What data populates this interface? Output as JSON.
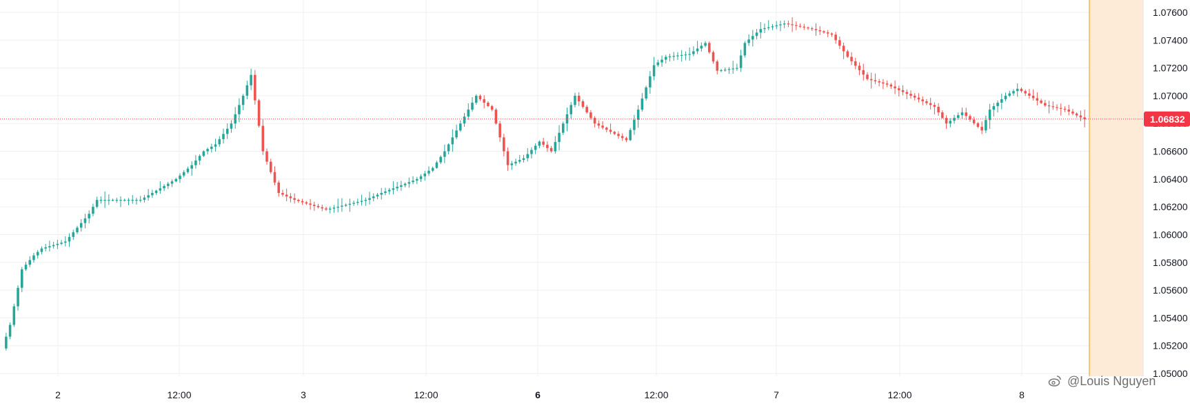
{
  "chart_data": {
    "type": "candlestick",
    "ylim": [
      1.05,
      1.0765
    ],
    "y_ticks": [
      "1.07600",
      "1.07400",
      "1.07200",
      "1.07000",
      "1.06800",
      "1.06600",
      "1.06400",
      "1.06200",
      "1.06000",
      "1.05800",
      "1.05600",
      "1.05400",
      "1.05200",
      "1.05000"
    ],
    "x_ticks": [
      {
        "label": "2",
        "bold": false
      },
      {
        "label": "12:00",
        "bold": false
      },
      {
        "label": "3",
        "bold": false
      },
      {
        "label": "12:00",
        "bold": false
      },
      {
        "label": "6",
        "bold": true
      },
      {
        "label": "12:00",
        "bold": false
      },
      {
        "label": "7",
        "bold": false
      },
      {
        "label": "12:00",
        "bold": false
      },
      {
        "label": "8",
        "bold": false
      }
    ],
    "last_price": 1.06832,
    "last_price_label": "1.06832",
    "colors": {
      "up": "#26a69a",
      "down": "#ef5350",
      "last_price": "#f23645",
      "future_zone": "#fdebd8",
      "future_line": "#f5a623",
      "grid": "#efefef"
    },
    "anchors": [
      [
        0,
        1.0518
      ],
      [
        2,
        1.0535
      ],
      [
        5,
        1.0575
      ],
      [
        8,
        1.0585
      ],
      [
        10,
        1.059
      ],
      [
        16,
        1.0595
      ],
      [
        22,
        1.0615
      ],
      [
        24,
        1.0625
      ],
      [
        28,
        1.0625
      ],
      [
        35,
        1.0625
      ],
      [
        44,
        1.064
      ],
      [
        48,
        1.065
      ],
      [
        51,
        1.066
      ],
      [
        54,
        1.0665
      ],
      [
        58,
        1.068
      ],
      [
        61,
        1.07
      ],
      [
        63,
        1.0715
      ],
      [
        66,
        1.066
      ],
      [
        70,
        1.063
      ],
      [
        74,
        1.0625
      ],
      [
        82,
        1.0618
      ],
      [
        92,
        1.0625
      ],
      [
        96,
        1.063
      ],
      [
        105,
        1.064
      ],
      [
        109,
        1.0648
      ],
      [
        112,
        1.066
      ],
      [
        116,
        1.068
      ],
      [
        120,
        1.07
      ],
      [
        124,
        1.069
      ],
      [
        128,
        1.065
      ],
      [
        132,
        1.0655
      ],
      [
        136,
        1.0667
      ],
      [
        139,
        1.066
      ],
      [
        145,
        1.07
      ],
      [
        150,
        1.068
      ],
      [
        158,
        1.0668
      ],
      [
        161,
        1.069
      ],
      [
        165,
        1.0722
      ],
      [
        168,
        1.0728
      ],
      [
        174,
        1.073
      ],
      [
        178,
        1.0738
      ],
      [
        181,
        1.0718
      ],
      [
        186,
        1.072
      ],
      [
        188,
        1.0738
      ],
      [
        192,
        1.0748
      ],
      [
        198,
        1.0752
      ],
      [
        205,
        1.0748
      ],
      [
        210,
        1.0744
      ],
      [
        214,
        1.0728
      ],
      [
        219,
        1.0712
      ],
      [
        224,
        1.0708
      ],
      [
        230,
        1.07
      ],
      [
        236,
        1.0692
      ],
      [
        239,
        1.068
      ],
      [
        243,
        1.0688
      ],
      [
        248,
        1.0675
      ],
      [
        250,
        1.069
      ],
      [
        254,
        1.07
      ],
      [
        257,
        1.0705
      ],
      [
        260,
        1.07
      ],
      [
        264,
        1.0693
      ],
      [
        269,
        1.069
      ],
      [
        274,
        1.0683
      ]
    ],
    "x_domain": [
      0,
      274
    ]
  },
  "watermark": {
    "text": "@Louis Nguyen",
    "icon": "weibo-icon"
  }
}
